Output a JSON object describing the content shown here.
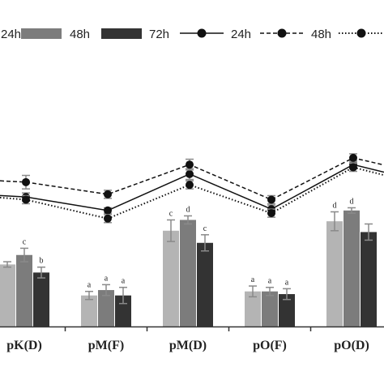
{
  "chart_data": {
    "type": "bar+line",
    "categories": [
      "pK(D)",
      "pM(F)",
      "pM(D)",
      "pO(F)",
      "pO(D)"
    ],
    "y_range": [
      0,
      100
    ],
    "grid": false,
    "legend_position": "top",
    "bar_series": [
      {
        "name": "24h",
        "color": "#b4b4b4",
        "values": [
          23.0,
          11.5,
          35.5,
          13.0,
          39.0
        ],
        "errors": [
          1.0,
          1.5,
          4.0,
          2.0,
          3.5
        ],
        "letters": [
          "",
          "a",
          "c",
          "a",
          "d"
        ]
      },
      {
        "name": "48h",
        "color": "#7c7c7c",
        "values": [
          26.5,
          13.5,
          39.5,
          13.0,
          43.0
        ],
        "errors": [
          2.5,
          2.0,
          1.5,
          1.5,
          1.0
        ],
        "letters": [
          "c",
          "a",
          "d",
          "a",
          "d"
        ]
      },
      {
        "name": "72h",
        "color": "#333333",
        "values": [
          20.0,
          11.5,
          31.0,
          12.0,
          35.0
        ],
        "errors": [
          2.0,
          3.0,
          3.0,
          2.0,
          3.0
        ],
        "letters": [
          "b",
          "a",
          "c",
          "a",
          ""
        ]
      }
    ],
    "line_series": [
      {
        "name": "24h",
        "style": "solid",
        "values": [
          48.0,
          43.0,
          56.5,
          43.5,
          60.0
        ],
        "errors": [
          1.5,
          1.0,
          2.0,
          1.5,
          1.5
        ]
      },
      {
        "name": "48h",
        "style": "dashed",
        "values": [
          53.5,
          49.0,
          60.0,
          47.0,
          62.5
        ],
        "errors": [
          2.5,
          1.5,
          2.0,
          1.5,
          1.5
        ]
      },
      {
        "name": "72h",
        "style": "dotted",
        "values": [
          47.0,
          40.0,
          52.5,
          42.0,
          59.0
        ],
        "errors": [
          1.5,
          1.5,
          1.5,
          1.5,
          1.5
        ]
      }
    ]
  }
}
